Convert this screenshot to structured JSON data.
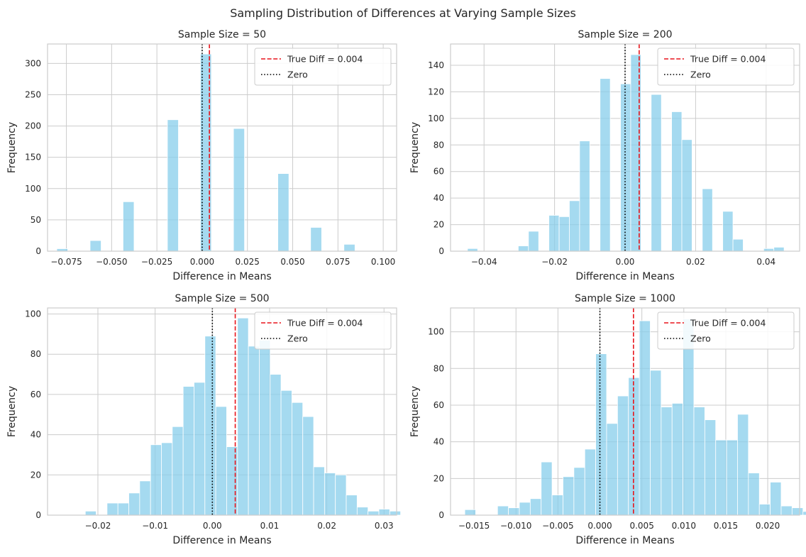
{
  "figure_title": "Sampling Distribution of Differences at Varying Sample Sizes",
  "colors": {
    "bar": "#87ceeb",
    "true_line": "#e8141b",
    "zero_line": "#000000",
    "grid": "#cccccc",
    "axes_edge": "#cccccc"
  },
  "chart_data": [
    {
      "type": "bar",
      "title": "Sample Size = 50",
      "xlabel": "Difference in Means",
      "ylabel": "Frequency",
      "xlim": [
        -0.0854,
        0.1074
      ],
      "ylim": [
        0,
        331
      ],
      "xticks": [
        -0.075,
        -0.05,
        -0.025,
        0.0,
        0.025,
        0.05,
        0.075,
        0.1
      ],
      "xtick_labels": [
        "−0.075",
        "−0.050",
        "−0.025",
        "0.000",
        "0.025",
        "0.050",
        "0.075",
        "0.100"
      ],
      "yticks": [
        0,
        50,
        100,
        150,
        200,
        250,
        300
      ],
      "ytick_labels": [
        "0",
        "50",
        "100",
        "150",
        "200",
        "250",
        "300"
      ],
      "bins": [
        [
          -0.0803,
          -0.0742,
          4
        ],
        [
          -0.0619,
          -0.0558,
          17
        ],
        [
          -0.0437,
          -0.0376,
          79
        ],
        [
          -0.0192,
          -0.0131,
          210
        ],
        [
          -0.001,
          0.0051,
          315
        ],
        [
          0.0173,
          0.0234,
          196
        ],
        [
          0.0418,
          0.0479,
          124
        ],
        [
          0.0599,
          0.066,
          38
        ],
        [
          0.0783,
          0.0844,
          11
        ]
      ],
      "true_diff": 0.004,
      "legend": [
        "True Diff = 0.004",
        "Zero"
      ],
      "legend_position": "upper right",
      "grid": true
    },
    {
      "type": "bar",
      "title": "Sample Size = 200",
      "xlabel": "Difference in Means",
      "ylabel": "Frequency",
      "xlim": [
        -0.0495,
        0.0495
      ],
      "ylim": [
        0,
        156
      ],
      "xticks": [
        -0.04,
        -0.02,
        0.0,
        0.02,
        0.04
      ],
      "xtick_labels": [
        "−0.04",
        "−0.02",
        "0.00",
        "0.02",
        "0.04"
      ],
      "yticks": [
        0,
        20,
        40,
        60,
        80,
        100,
        120,
        140
      ],
      "ytick_labels": [
        "0",
        "20",
        "40",
        "60",
        "80",
        "100",
        "120",
        "140"
      ],
      "bins": [
        [
          -0.0447,
          -0.0418,
          2
        ],
        [
          -0.0303,
          -0.0274,
          4
        ],
        [
          -0.0274,
          -0.0245,
          15
        ],
        [
          -0.0216,
          -0.0187,
          27
        ],
        [
          -0.0187,
          -0.0158,
          26
        ],
        [
          -0.0158,
          -0.0129,
          38
        ],
        [
          -0.0129,
          -0.01,
          83
        ],
        [
          -0.0071,
          -0.0042,
          130
        ],
        [
          -0.0013,
          0.0016,
          126
        ],
        [
          0.0016,
          0.0045,
          148
        ],
        [
          0.0074,
          0.0103,
          118
        ],
        [
          0.0132,
          0.0161,
          105
        ],
        [
          0.0161,
          0.019,
          84
        ],
        [
          0.0219,
          0.0248,
          47
        ],
        [
          0.0277,
          0.0306,
          30
        ],
        [
          0.0306,
          0.0335,
          9
        ],
        [
          0.0393,
          0.0422,
          2
        ],
        [
          0.0422,
          0.0451,
          3
        ]
      ],
      "true_diff": 0.004,
      "legend": [
        "True Diff = 0.004",
        "Zero"
      ],
      "legend_position": "upper right",
      "grid": true
    },
    {
      "type": "bar",
      "title": "Sample Size = 500",
      "xlabel": "Difference in Means",
      "ylabel": "Frequency",
      "xlim": [
        -0.0288,
        0.0322
      ],
      "ylim": [
        0,
        103
      ],
      "xticks": [
        -0.02,
        -0.01,
        0.0,
        0.01,
        0.02,
        0.03
      ],
      "xtick_labels": [
        "−0.02",
        "−0.01",
        "0.00",
        "0.01",
        "0.02",
        "0.03"
      ],
      "yticks": [
        0,
        20,
        40,
        60,
        80,
        100
      ],
      "ytick_labels": [
        "0",
        "20",
        "40",
        "60",
        "80",
        "100"
      ],
      "bins": [
        [
          -0.026,
          -0.0241,
          0
        ],
        [
          -0.0241,
          -0.0222,
          0
        ],
        [
          -0.0222,
          -0.0203,
          2
        ],
        [
          -0.0184,
          -0.0165,
          6
        ],
        [
          -0.0165,
          -0.0146,
          6
        ],
        [
          -0.0146,
          -0.0127,
          11
        ],
        [
          -0.0127,
          -0.0108,
          17
        ],
        [
          -0.0108,
          -0.0089,
          35
        ],
        [
          -0.0089,
          -0.007,
          36
        ],
        [
          -0.007,
          -0.0051,
          44
        ],
        [
          -0.0051,
          -0.0032,
          64
        ],
        [
          -0.0032,
          -0.0013,
          66
        ],
        [
          -0.0013,
          0.0006,
          89
        ],
        [
          0.0006,
          0.0025,
          54
        ],
        [
          0.0025,
          0.0044,
          34
        ],
        [
          0.0044,
          0.0063,
          98
        ],
        [
          0.0063,
          0.0082,
          84
        ],
        [
          0.0082,
          0.0101,
          87
        ],
        [
          0.0101,
          0.012,
          70
        ],
        [
          0.012,
          0.0139,
          62
        ],
        [
          0.0139,
          0.0158,
          56
        ],
        [
          0.0158,
          0.0177,
          49
        ],
        [
          0.0177,
          0.0196,
          24
        ],
        [
          0.0196,
          0.0215,
          21
        ],
        [
          0.0215,
          0.0234,
          20
        ],
        [
          0.0234,
          0.0253,
          10
        ],
        [
          0.0253,
          0.0272,
          4
        ],
        [
          0.0272,
          0.0291,
          2
        ],
        [
          0.0291,
          0.031,
          3
        ],
        [
          0.031,
          0.0329,
          2
        ]
      ],
      "true_diff": 0.004,
      "legend": [
        "True Diff = 0.004",
        "Zero"
      ],
      "legend_position": "upper right",
      "grid": true
    },
    {
      "type": "bar",
      "title": "Sample Size = 1000",
      "xlabel": "Difference in Means",
      "ylabel": "Frequency",
      "xlim": [
        -0.0178,
        0.0238
      ],
      "ylim": [
        0,
        113
      ],
      "xticks": [
        -0.015,
        -0.01,
        -0.005,
        0.0,
        0.005,
        0.01,
        0.015,
        0.02
      ],
      "xtick_labels": [
        "−0.015",
        "−0.010",
        "−0.005",
        "0.000",
        "0.005",
        "0.010",
        "0.015",
        "0.020"
      ],
      "yticks": [
        0,
        20,
        40,
        60,
        80,
        100
      ],
      "ytick_labels": [
        "0",
        "20",
        "40",
        "60",
        "80",
        "100"
      ],
      "bins": [
        [
          -0.0161,
          -0.0148,
          3
        ],
        [
          -0.0122,
          -0.0109,
          5
        ],
        [
          -0.0109,
          -0.0096,
          4
        ],
        [
          -0.0096,
          -0.0083,
          7
        ],
        [
          -0.0083,
          -0.007,
          9
        ],
        [
          -0.007,
          -0.0057,
          29
        ],
        [
          -0.0057,
          -0.0044,
          11
        ],
        [
          -0.0044,
          -0.0031,
          21
        ],
        [
          -0.0031,
          -0.0018,
          26
        ],
        [
          -0.0018,
          -0.0005,
          36
        ],
        [
          -0.0005,
          0.0008,
          88
        ],
        [
          0.0008,
          0.0021,
          50
        ],
        [
          0.0021,
          0.0034,
          65
        ],
        [
          0.0034,
          0.0047,
          75
        ],
        [
          0.0047,
          0.006,
          106
        ],
        [
          0.006,
          0.0073,
          79
        ],
        [
          0.0073,
          0.0086,
          59
        ],
        [
          0.0086,
          0.0099,
          61
        ],
        [
          0.0099,
          0.0112,
          107
        ],
        [
          0.0112,
          0.0125,
          59
        ],
        [
          0.0125,
          0.0138,
          52
        ],
        [
          0.0138,
          0.0151,
          41
        ],
        [
          0.0151,
          0.0164,
          41
        ],
        [
          0.0164,
          0.0177,
          55
        ],
        [
          0.0177,
          0.019,
          23
        ],
        [
          0.019,
          0.0203,
          6
        ],
        [
          0.0203,
          0.0216,
          18
        ],
        [
          0.0216,
          0.0229,
          5
        ],
        [
          0.0229,
          0.0242,
          4
        ],
        [
          0.0242,
          0.0255,
          2
        ]
      ],
      "true_diff": 0.004,
      "legend": [
        "True Diff = 0.004",
        "Zero"
      ],
      "legend_position": "upper right",
      "grid": true
    }
  ]
}
